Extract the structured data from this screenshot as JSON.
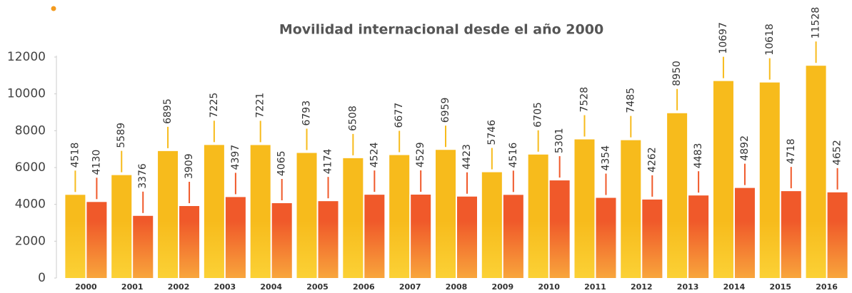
{
  "chart_data": {
    "type": "bar",
    "title": "Movilidad internacional desde el año 2000",
    "categories": [
      "2000",
      "2001",
      "2002",
      "2003",
      "2004",
      "2005",
      "2006",
      "2007",
      "2008",
      "2009",
      "2010",
      "2011",
      "2012",
      "2013",
      "2014",
      "2015",
      "2016"
    ],
    "series": [
      {
        "color": "#f7bb1c",
        "values": [
          4518,
          5589,
          6895,
          7225,
          7221,
          6793,
          6508,
          6677,
          6959,
          5746,
          6705,
          7528,
          7485,
          8950,
          10697,
          10618,
          11528
        ]
      },
      {
        "color": "#f0592a",
        "values": [
          4130,
          3376,
          3909,
          4397,
          4065,
          4174,
          4524,
          4529,
          4423,
          4516,
          5301,
          4354,
          4262,
          4483,
          4892,
          4718,
          4652
        ]
      }
    ],
    "ylim": [
      0,
      12000
    ],
    "yticks": [
      0,
      2000,
      4000,
      6000,
      8000,
      10000,
      12000
    ]
  }
}
